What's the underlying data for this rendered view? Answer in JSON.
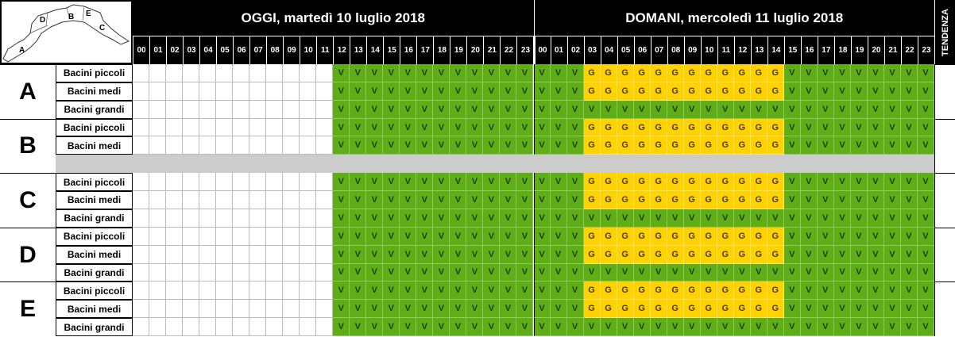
{
  "map": {
    "labels": [
      "A",
      "B",
      "C",
      "D",
      "E"
    ]
  },
  "header": {
    "today": "OGGI, martedì 10 luglio 2018",
    "tomorrow": "DOMANI, mercoledì 11 luglio 2018",
    "trend": "TENDENZA",
    "hours": [
      "00",
      "01",
      "02",
      "03",
      "04",
      "05",
      "06",
      "07",
      "08",
      "09",
      "10",
      "11",
      "12",
      "13",
      "14",
      "15",
      "16",
      "17",
      "18",
      "19",
      "20",
      "21",
      "22",
      "23"
    ]
  },
  "legend_colors": {
    "V": "#5fae17",
    "G": "#ffd200"
  },
  "zones": [
    {
      "name": "A",
      "rows": [
        {
          "label": "Bacini piccoli",
          "cells": "------------VVVVVVVVVVVVVVVGGGGGGGGGGGGVVVVVVVVV"
        },
        {
          "label": "Bacini medi",
          "cells": "------------VVVVVVVVVVVVVVVGGGGGGGGGGGGVVVVVVVVV"
        },
        {
          "label": "Bacini grandi",
          "cells": "------------VVVVVVVVVVVVVVVVVVVVVVVVVVVVVVVVVVVV"
        }
      ]
    },
    {
      "name": "B",
      "rows": [
        {
          "label": "Bacini piccoli",
          "cells": "------------VVVVVVVVVVVVVVVGGGGGGGGGGGGVVVVVVVVV"
        },
        {
          "label": "Bacini medi",
          "cells": "------------VVVVVVVVVVVVVVVGGGGGGGGGGGGVVVVVVVVV"
        },
        {
          "label": "",
          "cells": ""
        }
      ]
    },
    {
      "name": "C",
      "rows": [
        {
          "label": "Bacini piccoli",
          "cells": "------------VVVVVVVVVVVVVVVGGGGGGGGGGGGVVVVVVVVV"
        },
        {
          "label": "Bacini medi",
          "cells": "------------VVVVVVVVVVVVVVVGGGGGGGGGGGGVVVVVVVVV"
        },
        {
          "label": "Bacini grandi",
          "cells": "------------VVVVVVVVVVVVVVVVVVVVVVVVVVVVVVVVVVVV"
        }
      ]
    },
    {
      "name": "D",
      "rows": [
        {
          "label": "Bacini piccoli",
          "cells": "------------VVVVVVVVVVVVVVVGGGGGGGGGGGGVVVVVVVVV"
        },
        {
          "label": "Bacini medi",
          "cells": "------------VVVVVVVVVVVVVVVGGGGGGGGGGGGVVVVVVVVV"
        },
        {
          "label": "Bacini grandi",
          "cells": "------------VVVVVVVVVVVVVVVVVVVVVVVVVVVVVVVVVVVV"
        }
      ]
    },
    {
      "name": "E",
      "rows": [
        {
          "label": "Bacini piccoli",
          "cells": "------------VVVVVVVVVVVVVVVGGGGGGGGGGGGVVVVVVVVV"
        },
        {
          "label": "Bacini medi",
          "cells": "------------VVVVVVVVVVVVVVVGGGGGGGGGGGGVVVVVVVVV"
        },
        {
          "label": "Bacini grandi",
          "cells": "------------VVVVVVVVVVVVVVVVVVVVVVVVVVVVVVVVVVVV"
        }
      ]
    }
  ]
}
